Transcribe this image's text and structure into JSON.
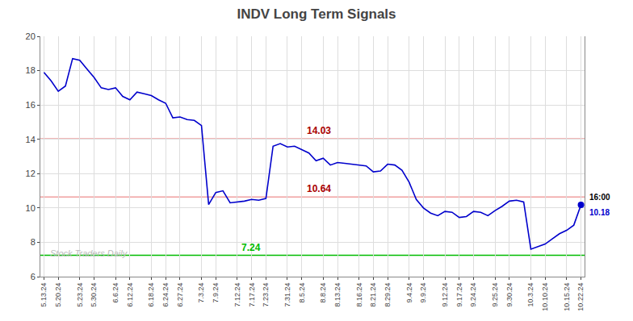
{
  "chart_data": {
    "type": "line",
    "title": "INDV Long Term Signals",
    "categories": [
      "5.13.24",
      null,
      "5.20.24",
      null,
      null,
      "5.23.24",
      null,
      "5.30.24",
      null,
      null,
      "6.6.24",
      null,
      "6.12.24",
      null,
      null,
      "6.18.24",
      null,
      "6.24.24",
      null,
      "6.27.24",
      null,
      null,
      "7.3.24",
      null,
      "7.9.24",
      null,
      null,
      "7.12.24",
      null,
      "7.17.24",
      null,
      "7.23.24",
      null,
      null,
      "7.31.24",
      null,
      "8.5.24",
      null,
      null,
      "8.8.24",
      null,
      "8.13.24",
      null,
      null,
      "8.16.24",
      null,
      "8.21.24",
      null,
      "8.29.24",
      null,
      null,
      "9.4.24",
      null,
      "9.9.24",
      null,
      null,
      "9.12.24",
      null,
      "9.17.24",
      null,
      "9.24.24",
      null,
      null,
      "9.25.24",
      null,
      "9.30.24",
      null,
      null,
      "10.3.24",
      null,
      "10.10.24",
      null,
      null,
      "10.15.24",
      null,
      "10.22.24"
    ],
    "values": [
      17.9,
      17.4,
      16.8,
      17.1,
      18.7,
      18.6,
      18.1,
      17.6,
      17.0,
      16.9,
      17.0,
      16.5,
      16.3,
      16.75,
      16.65,
      16.55,
      16.3,
      16.1,
      15.25,
      15.3,
      15.15,
      15.1,
      14.8,
      10.2,
      10.9,
      11.0,
      10.3,
      10.35,
      10.4,
      10.5,
      10.45,
      10.55,
      13.6,
      13.75,
      13.55,
      13.6,
      13.4,
      13.2,
      12.75,
      12.9,
      12.5,
      12.65,
      12.6,
      12.55,
      12.5,
      12.45,
      12.1,
      12.15,
      12.55,
      12.5,
      12.2,
      11.5,
      10.5,
      10.0,
      9.7,
      9.55,
      9.8,
      9.75,
      9.45,
      9.5,
      9.8,
      9.75,
      9.55,
      9.85,
      10.1,
      10.4,
      10.45,
      10.35,
      7.6,
      7.75,
      7.9,
      8.2,
      8.5,
      8.7,
      9.0,
      10.18
    ],
    "color": "#0000cc",
    "ylim": [
      6,
      20
    ],
    "yticks": [
      6,
      8,
      10,
      12,
      14,
      16,
      18,
      20
    ],
    "grid": true,
    "hlines": [
      {
        "value": 14.03,
        "label": "14.03",
        "color": "#f0a0a0",
        "label_color": "#aa0000"
      },
      {
        "value": 10.64,
        "label": "10.64",
        "color": "#f0a0a0",
        "label_color": "#aa0000"
      },
      {
        "value": 7.24,
        "label": "7.24",
        "color": "#00bb00",
        "label_color": "#00bb00"
      }
    ],
    "last_point": {
      "label": "16:00",
      "value_label": "10.18",
      "color": "#0000cc"
    },
    "watermark": {
      "text": "Stock Traders Daily",
      "color": "#bbbbbb"
    }
  }
}
